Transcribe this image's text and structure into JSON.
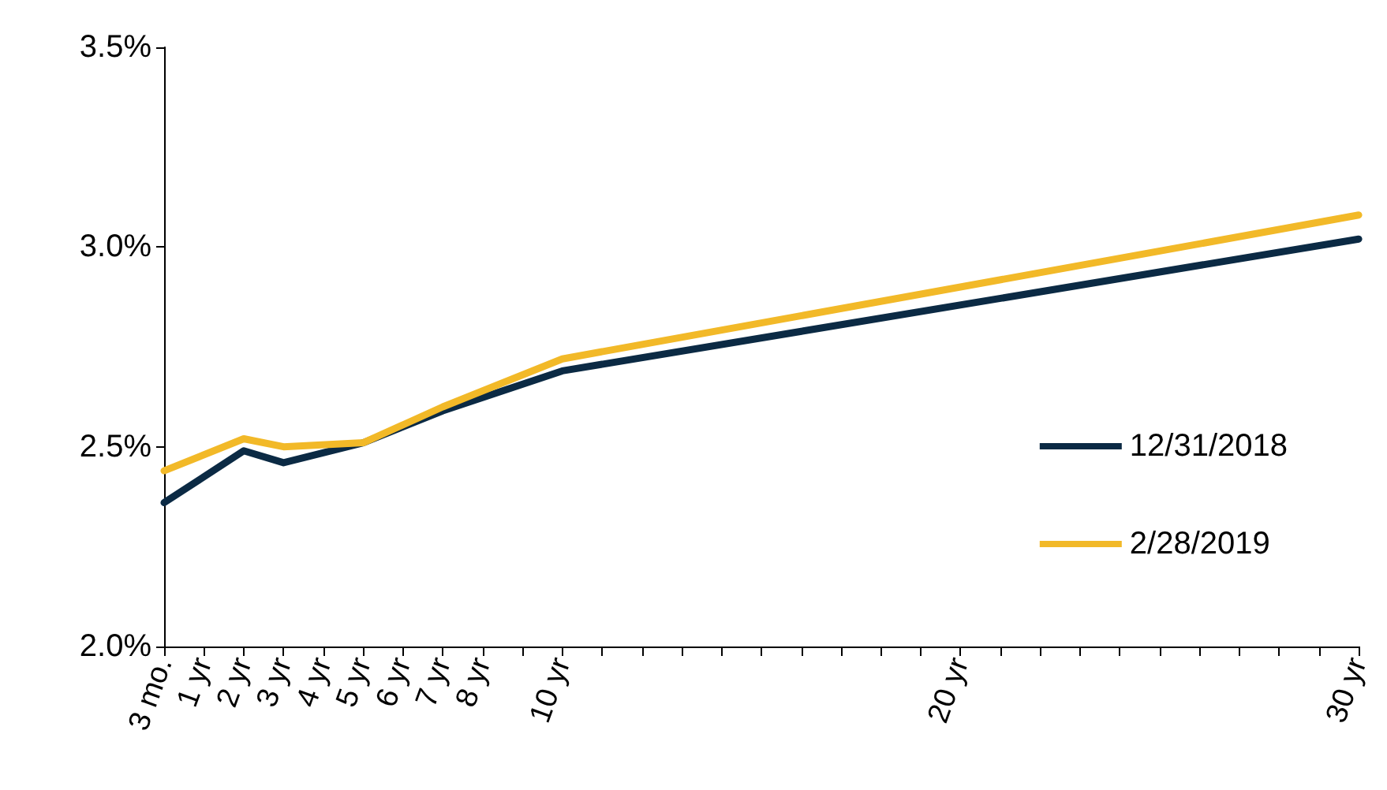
{
  "chart_data": {
    "type": "line",
    "categories": [
      "3 mo.",
      "1 yr",
      "2 yr",
      "3 yr",
      "4 yr",
      "5 yr",
      "6 yr",
      "7 yr",
      "8 yr",
      null,
      "10 yr",
      null,
      null,
      null,
      null,
      null,
      null,
      null,
      null,
      null,
      "20 yr",
      null,
      null,
      null,
      null,
      null,
      null,
      null,
      null,
      null,
      "30 yr"
    ],
    "series": [
      {
        "name": "12/31/2018",
        "color": "#0b2a44",
        "values": [
          2.36,
          null,
          2.49,
          2.46,
          null,
          2.51,
          null,
          2.59,
          null,
          null,
          2.69,
          null,
          null,
          null,
          null,
          null,
          null,
          null,
          null,
          null,
          null,
          null,
          null,
          null,
          null,
          null,
          null,
          null,
          null,
          null,
          3.02
        ]
      },
      {
        "name": "2/28/2019",
        "color": "#f2b928",
        "values": [
          2.44,
          null,
          2.52,
          2.5,
          null,
          2.51,
          null,
          2.6,
          null,
          null,
          2.72,
          null,
          null,
          null,
          null,
          null,
          null,
          null,
          null,
          null,
          null,
          null,
          null,
          null,
          null,
          null,
          null,
          null,
          null,
          null,
          3.08
        ]
      }
    ],
    "ylim": [
      2.0,
      3.5
    ],
    "yticks": [
      {
        "value": 2.0,
        "label": "2.0%"
      },
      {
        "value": 2.5,
        "label": "2.5%"
      },
      {
        "value": 3.0,
        "label": "3.0%"
      },
      {
        "value": 3.5,
        "label": "3.5%"
      }
    ],
    "grid": false,
    "legend": "right",
    "marker": "none",
    "line_style": "solid"
  }
}
